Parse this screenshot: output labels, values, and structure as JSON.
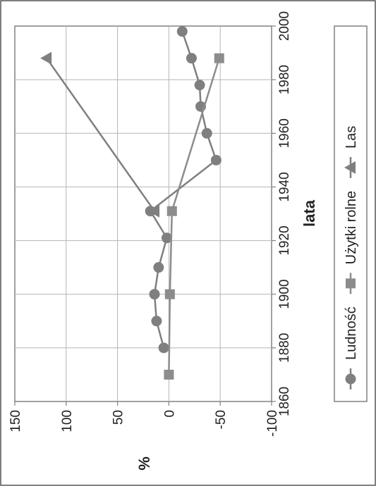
{
  "chart_data": {
    "type": "line",
    "orientation": "rotated-90-ccw",
    "xlabel": "lata",
    "ylabel": "%",
    "xlim": [
      1860,
      2000
    ],
    "ylim": [
      -100,
      150
    ],
    "x_ticks": [
      "1860",
      "1880",
      "1900",
      "1920",
      "1940",
      "1960",
      "1980",
      "2000"
    ],
    "y_ticks": [
      "150",
      "100",
      "50",
      "0",
      "-50",
      "-100"
    ],
    "grid": true,
    "legend_position": "bottom",
    "series": [
      {
        "name": "Ludność",
        "marker": "circle",
        "color": "#7f7f7f",
        "points": [
          [
            1880,
            5
          ],
          [
            1890,
            12
          ],
          [
            1900,
            14
          ],
          [
            1910,
            10
          ],
          [
            1921,
            2
          ],
          [
            1931,
            18
          ],
          [
            1950,
            -46
          ],
          [
            1960,
            -37
          ],
          [
            1970,
            -31
          ],
          [
            1978,
            -30
          ],
          [
            1988,
            -22
          ],
          [
            1998,
            -13
          ]
        ]
      },
      {
        "name": "Użytki rolne",
        "marker": "square",
        "color": "#8c8c8c",
        "points": [
          [
            1870,
            0
          ],
          [
            1900,
            -1
          ],
          [
            1931,
            -3
          ],
          [
            1988,
            -49
          ]
        ]
      },
      {
        "name": "Las",
        "marker": "triangle",
        "color": "#7f7f7f",
        "points": [
          [
            1931,
            14
          ],
          [
            1988,
            119
          ]
        ]
      }
    ]
  }
}
